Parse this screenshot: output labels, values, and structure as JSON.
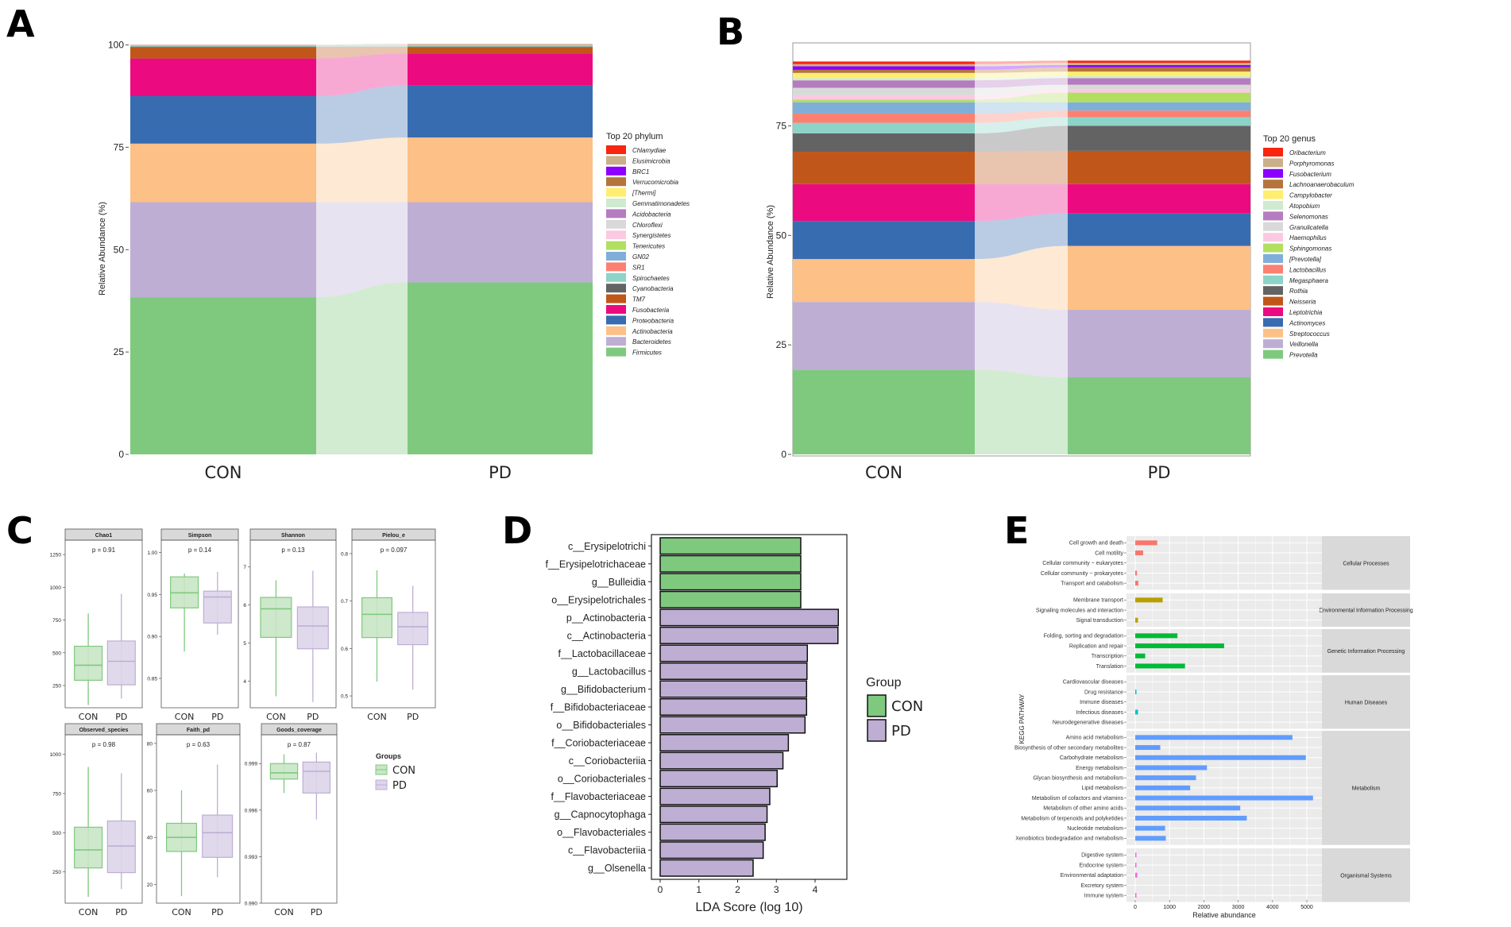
{
  "panel_letters": [
    "A",
    "B",
    "C",
    "D",
    "E"
  ],
  "chart_data": [
    {
      "panel": "A",
      "type": "area",
      "ylabel": "Relative Abundance (%)",
      "categories": [
        "CON",
        "PD"
      ],
      "yticks": [
        0,
        25,
        50,
        75,
        100
      ],
      "ylim": [
        0,
        100.5
      ],
      "legend_title": "Top 20 phylum",
      "legend_position": "right",
      "series": [
        {
          "name": "Firmicutes",
          "color": "#7fc97f",
          "values": [
            38.4,
            42.0
          ]
        },
        {
          "name": "Bacteroidetes",
          "color": "#beaed4",
          "values": [
            23.2,
            19.6
          ]
        },
        {
          "name": "Actinobacteria",
          "color": "#fdc086",
          "values": [
            14.3,
            15.8
          ]
        },
        {
          "name": "Proteobacteria",
          "color": "#386cb0",
          "values": [
            11.6,
            12.7
          ]
        },
        {
          "name": "Fusobacteria",
          "color": "#ec0a80",
          "values": [
            9.2,
            7.8
          ]
        },
        {
          "name": "TM7",
          "color": "#c1561a",
          "values": [
            2.8,
            1.6
          ]
        },
        {
          "name": "Cyanobacteria",
          "color": "#636363",
          "values": [
            0.1,
            0.1
          ]
        },
        {
          "name": "Spirochaetes",
          "color": "#8dd3c7",
          "values": [
            0.2,
            0.3
          ]
        },
        {
          "name": "SR1",
          "color": "#fb8072",
          "values": [
            0.05,
            0.1
          ]
        },
        {
          "name": "GN02",
          "color": "#7fafd8",
          "values": [
            0.05,
            0.05
          ]
        },
        {
          "name": "Tenericutes",
          "color": "#b2df62",
          "values": [
            0.05,
            0.1
          ]
        },
        {
          "name": "Synergistetes",
          "color": "#fbc9e2",
          "values": [
            0.05,
            0.05
          ]
        },
        {
          "name": "Chloroflexi",
          "color": "#d9d9d9",
          "values": [
            0.02,
            0.02
          ]
        },
        {
          "name": "Acidobacteria",
          "color": "#b57cbf",
          "values": [
            0.02,
            0.02
          ]
        },
        {
          "name": "Gemmatimonadetes",
          "color": "#cfead0",
          "values": [
            0.01,
            0.01
          ]
        },
        {
          "name": "[Thermi]",
          "color": "#ffee6f",
          "values": [
            0.01,
            0.01
          ]
        },
        {
          "name": "Verrucomicrobia",
          "color": "#b5743c",
          "values": [
            0.02,
            0.02
          ]
        },
        {
          "name": "BRC1",
          "color": "#8b00ff",
          "values": [
            0.01,
            0.01
          ]
        },
        {
          "name": "Elusimicrobia",
          "color": "#c9b08a",
          "values": [
            0.01,
            0.01
          ]
        },
        {
          "name": "Chlamydiae",
          "color": "#f8250f",
          "values": [
            0.01,
            0.01
          ]
        }
      ]
    },
    {
      "panel": "B",
      "type": "area",
      "ylabel": "Relative Abundance (%)",
      "categories": [
        "CON",
        "PD"
      ],
      "yticks": [
        0,
        25,
        50,
        75
      ],
      "ylim": [
        0,
        92.5
      ],
      "legend_title": "Top 20 genus",
      "legend_position": "right",
      "series": [
        {
          "name": "Prevotella",
          "color": "#7fc97f",
          "values": [
            19.3,
            17.6
          ]
        },
        {
          "name": "Veillonella",
          "color": "#beaed4",
          "values": [
            15.5,
            15.4
          ]
        },
        {
          "name": "Streptococcus",
          "color": "#fdc086",
          "values": [
            9.8,
            14.6
          ]
        },
        {
          "name": "Actinomyces",
          "color": "#386cb0",
          "values": [
            8.7,
            7.4
          ]
        },
        {
          "name": "Leptotrichia",
          "color": "#ec0a80",
          "values": [
            8.4,
            6.7
          ]
        },
        {
          "name": "Neisseria",
          "color": "#c1561a",
          "values": [
            7.4,
            7.6
          ]
        },
        {
          "name": "Rothia",
          "color": "#636363",
          "values": [
            4.2,
            5.7
          ]
        },
        {
          "name": "Megasphaera",
          "color": "#8dd3c7",
          "values": [
            2.4,
            2.0
          ]
        },
        {
          "name": "Lactobacillus",
          "color": "#fb8072",
          "values": [
            2.1,
            1.5
          ]
        },
        {
          "name": "[Prevotella]",
          "color": "#7fafd8",
          "values": [
            2.6,
            1.9
          ]
        },
        {
          "name": "Sphingomonas",
          "color": "#b2df62",
          "values": [
            0.6,
            2.2
          ]
        },
        {
          "name": "Haemophilus",
          "color": "#fbc9e2",
          "values": [
            1.0,
            0.8
          ]
        },
        {
          "name": "Granulicatella",
          "color": "#d9d9d9",
          "values": [
            1.7,
            1.0
          ]
        },
        {
          "name": "Selenomonas",
          "color": "#b57cbf",
          "values": [
            1.7,
            1.5
          ]
        },
        {
          "name": "Atopobium",
          "color": "#cfead0",
          "values": [
            0.5,
            0.5
          ]
        },
        {
          "name": "Campylobacter",
          "color": "#ffee6f",
          "values": [
            1.2,
            1.0
          ]
        },
        {
          "name": "Lachnoanaerobaculum",
          "color": "#b5743c",
          "values": [
            0.7,
            1.0
          ]
        },
        {
          "name": "Fusobacterium",
          "color": "#8b00ff",
          "values": [
            0.8,
            0.5
          ]
        },
        {
          "name": "Porphyromonas",
          "color": "#c9b08a",
          "values": [
            0.5,
            0.5
          ]
        },
        {
          "name": "Oribacterium",
          "color": "#f8250f",
          "values": [
            0.6,
            0.5
          ]
        }
      ]
    },
    {
      "panel": "C",
      "type": "box",
      "groups": [
        "CON",
        "PD"
      ],
      "group_colors": {
        "CON": "#7fc97f",
        "PD": "#beaed4"
      },
      "legend_title": "Groups",
      "facets": [
        {
          "title": "Chao1",
          "p": "p = 0.91",
          "ylim": [
            80,
            1330
          ],
          "yticks": [
            250,
            500,
            750,
            1000,
            1250
          ],
          "ticklabels": [
            "250",
            "500",
            "750",
            "1000",
            "1250"
          ],
          "boxes": [
            {
              "min": 100,
              "q1": 290,
              "median": 405,
              "q3": 550,
              "max": 800
            },
            {
              "min": 150,
              "q1": 255,
              "median": 435,
              "q3": 590,
              "max": 950
            }
          ]
        },
        {
          "title": "Simpson",
          "p": "p = 0.14",
          "ylim": [
            0.815,
            1.01
          ],
          "yticks": [
            0.85,
            0.9,
            0.95,
            1.0
          ],
          "ticklabels": [
            "0.85",
            "0.90",
            "0.95",
            "1.00"
          ],
          "boxes": [
            {
              "min": 0.882,
              "q1": 0.934,
              "median": 0.952,
              "q3": 0.971,
              "max": 0.975
            },
            {
              "min": 0.902,
              "q1": 0.916,
              "median": 0.947,
              "q3": 0.954,
              "max": 0.977
            }
          ]
        },
        {
          "title": "Shannon",
          "p": "p = 0.13",
          "ylim": [
            3.3,
            7.6
          ],
          "yticks": [
            4,
            5,
            6,
            7
          ],
          "ticklabels": [
            "4",
            "5",
            "6",
            "7"
          ],
          "boxes": [
            {
              "min": 3.6,
              "q1": 5.15,
              "median": 5.9,
              "q3": 6.2,
              "max": 6.65
            },
            {
              "min": 3.45,
              "q1": 4.85,
              "median": 5.45,
              "q3": 5.95,
              "max": 6.9
            }
          ]
        },
        {
          "title": "Pielou_e",
          "p": "p = 0.097",
          "ylim": [
            0.475,
            0.82
          ],
          "yticks": [
            0.5,
            0.6,
            0.7,
            0.8
          ],
          "ticklabels": [
            "0.5",
            "0.6",
            "0.7",
            "0.8"
          ],
          "boxes": [
            {
              "min": 0.53,
              "q1": 0.623,
              "median": 0.672,
              "q3": 0.707,
              "max": 0.765
            },
            {
              "min": 0.513,
              "q1": 0.608,
              "median": 0.646,
              "q3": 0.676,
              "max": 0.732
            }
          ]
        },
        {
          "title": "Observed_species",
          "p": "p = 0.98",
          "ylim": [
            50,
            1100
          ],
          "yticks": [
            250,
            500,
            750,
            1000
          ],
          "ticklabels": [
            "250",
            "500",
            "750",
            "1000"
          ],
          "boxes": [
            {
              "min": 90,
              "q1": 275,
              "median": 390,
              "q3": 535,
              "max": 920
            },
            {
              "min": 140,
              "q1": 245,
              "median": 415,
              "q3": 575,
              "max": 880
            }
          ]
        },
        {
          "title": "Faith_pd",
          "p": "p = 0.63",
          "ylim": [
            12,
            82
          ],
          "yticks": [
            20,
            40,
            60,
            80
          ],
          "ticklabels": [
            "20",
            "40",
            "60",
            "80"
          ],
          "boxes": [
            {
              "min": 15,
              "q1": 34,
              "median": 40,
              "q3": 46,
              "max": 60
            },
            {
              "min": 23,
              "q1": 31.5,
              "median": 42,
              "q3": 49.5,
              "max": 71
            }
          ]
        },
        {
          "title": "Goods_coverage",
          "p": "p = 0.87",
          "ylim": [
            0.99,
            1.0006
          ],
          "yticks": [
            0.99,
            0.993,
            0.996,
            0.999
          ],
          "ticklabels": [
            "0.990",
            "0.993",
            "0.996",
            "0.999"
          ],
          "boxes": [
            {
              "min": 0.9971,
              "q1": 0.998,
              "median": 0.9984,
              "q3": 0.999,
              "max": 0.9996
            },
            {
              "min": 0.9954,
              "q1": 0.9971,
              "median": 0.9985,
              "q3": 0.9991,
              "max": 0.9997
            }
          ]
        }
      ]
    },
    {
      "panel": "D",
      "type": "bar",
      "orientation": "horizontal",
      "xlabel": "LDA Score (log 10)",
      "xticks": [
        0,
        1,
        2,
        3,
        4
      ],
      "xlim": [
        -0.2,
        4.85
      ],
      "legend_title": "Group",
      "legend": [
        {
          "name": "CON",
          "color": "#7fc97f"
        },
        {
          "name": "PD",
          "color": "#beaed4"
        }
      ],
      "categories": [
        "c__Erysipelotrichi",
        "f__Erysipelotrichaceae",
        "g__Bulleidia",
        "o__Erysipelotrichales",
        "p__Actinobacteria",
        "c__Actinobacteria",
        "f__Lactobacillaceae",
        "g__Lactobacillus",
        "g__Bifidobacterium",
        "f__Bifidobacteriaceae",
        "o__Bifidobacteriales",
        "f__Coriobacteriaceae",
        "c__Coriobacteriia",
        "o__Coriobacteriales",
        "f__Flavobacteriaceae",
        "g__Capnocytophaga",
        "o__Flavobacteriales",
        "c__Flavobacteriia",
        "g__Olsenella"
      ],
      "values": [
        3.63,
        3.63,
        3.63,
        3.63,
        4.6,
        4.59,
        3.8,
        3.79,
        3.78,
        3.78,
        3.74,
        3.31,
        3.17,
        3.02,
        2.83,
        2.76,
        2.71,
        2.66,
        2.4
      ],
      "groups": [
        "CON",
        "CON",
        "CON",
        "CON",
        "PD",
        "PD",
        "PD",
        "PD",
        "PD",
        "PD",
        "PD",
        "PD",
        "PD",
        "PD",
        "PD",
        "PD",
        "PD",
        "PD",
        "PD"
      ]
    },
    {
      "panel": "E",
      "type": "bar",
      "orientation": "horizontal",
      "xlabel": "Relative abundance",
      "ylabel": "KEGG PATHWAY",
      "xticks": [
        0,
        1000,
        2000,
        3000,
        4000,
        5000
      ],
      "facets": [
        {
          "title": "Cellular Processes",
          "color": "#f8766d",
          "categories": [
            "Cell growth and death",
            "Cell motility",
            "Cellular community − eukaryotes",
            "Cellular community − prokaryotes",
            "Transport and catabolism"
          ],
          "values": [
            640,
            230,
            0,
            50,
            90
          ]
        },
        {
          "title": "Environmental Information Processing",
          "color": "#b79f00",
          "categories": [
            "Membrane transport",
            "Signaling molecules and interaction",
            "Signal transduction"
          ],
          "values": [
            800,
            0,
            80
          ]
        },
        {
          "title": "Genetic Information Processing",
          "color": "#00ba38",
          "categories": [
            "Folding, sorting and degradation",
            "Replication and repair",
            "Transcription",
            "Translation"
          ],
          "values": [
            1230,
            2590,
            290,
            1450
          ]
        },
        {
          "title": "Human Diseases",
          "color": "#00bfc4",
          "categories": [
            "Cardiovascular diseases",
            "Drug resistance",
            "Immune diseases",
            "Infectious diseases",
            "Neurodegenerative diseases"
          ],
          "values": [
            0,
            15,
            0,
            80,
            0
          ]
        },
        {
          "title": "Metabolism",
          "color": "#619cff",
          "categories": [
            "Amino acid metabolism",
            "Biosynthesis of other secondary metabolites",
            "Carbohydrate metabolism",
            "Energy metabolism",
            "Glycan biosynthesis and metabolism",
            "Lipid metabolism",
            "Metabolism of cofactors and vitamins",
            "Metabolism of other amino acids",
            "Metabolism of terpenoids and polyketides",
            "Nucleotide metabolism",
            "Xenobiotics biodegradation and metabolism"
          ],
          "values": [
            4580,
            730,
            4970,
            2090,
            1770,
            1600,
            5180,
            3060,
            3250,
            870,
            890
          ]
        },
        {
          "title": "Organismal Systems",
          "color": "#f564e3",
          "categories": [
            "Digestive system",
            "Endocrine system",
            "Environmental adaptation",
            "Excretory system",
            "Immune system"
          ],
          "values": [
            10,
            20,
            60,
            0,
            10
          ]
        }
      ]
    }
  ]
}
